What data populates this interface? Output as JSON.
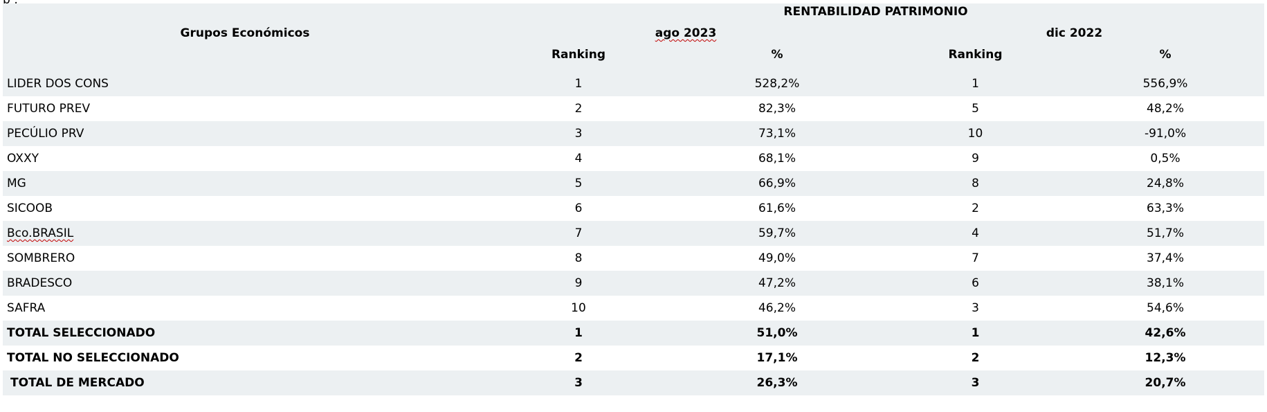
{
  "top_fragment": "  p  ,",
  "table": {
    "title": "RENTABILIDAD PATRIMONIO",
    "group_header": "Grupos Económicos",
    "periods": [
      {
        "label": "ago 2023",
        "ranking_header": "Ranking",
        "percent_header": "%"
      },
      {
        "label": "dic 2022",
        "ranking_header": "Ranking",
        "percent_header": "%"
      }
    ],
    "rows": [
      {
        "name": "LIDER DOS CONS",
        "rank_1": "1",
        "pct_1": "528,2%",
        "rank_2": "1",
        "pct_2": "556,9%"
      },
      {
        "name": "FUTURO PREV",
        "rank_1": "2",
        "pct_1": "82,3%",
        "rank_2": "5",
        "pct_2": "48,2%"
      },
      {
        "name": "PECÚLIO PRV",
        "rank_1": "3",
        "pct_1": "73,1%",
        "rank_2": "10",
        "pct_2": "-91,0%"
      },
      {
        "name": "OXXY",
        "rank_1": "4",
        "pct_1": "68,1%",
        "rank_2": "9",
        "pct_2": "0,5%"
      },
      {
        "name": "MG",
        "rank_1": "5",
        "pct_1": "66,9%",
        "rank_2": "8",
        "pct_2": "24,8%"
      },
      {
        "name": "SICOOB",
        "rank_1": "6",
        "pct_1": "61,6%",
        "rank_2": "2",
        "pct_2": "63,3%"
      },
      {
        "name": "Bco.BRASIL",
        "rank_1": "7",
        "pct_1": "59,7%",
        "rank_2": "4",
        "pct_2": "51,7%"
      },
      {
        "name": "SOMBRERO",
        "rank_1": "8",
        "pct_1": "49,0%",
        "rank_2": "7",
        "pct_2": "37,4%"
      },
      {
        "name": "BRADESCO",
        "rank_1": "9",
        "pct_1": "47,2%",
        "rank_2": "6",
        "pct_2": "38,1%"
      },
      {
        "name": "SAFRA",
        "rank_1": "10",
        "pct_1": "46,2%",
        "rank_2": "3",
        "pct_2": "54,6%"
      }
    ],
    "totals": [
      {
        "name": "TOTAL SELECCIONADO",
        "rank_1": "1",
        "pct_1": "51,0%",
        "rank_2": "1",
        "pct_2": "42,6%"
      },
      {
        "name": "TOTAL NO SELECCIONADO",
        "rank_1": "2",
        "pct_1": "17,1%",
        "rank_2": "2",
        "pct_2": "12,3%"
      },
      {
        "name": "TOTAL DE MERCADO",
        "rank_1": "3",
        "pct_1": "26,3%",
        "rank_2": "3",
        "pct_2": "20,7%"
      }
    ]
  }
}
